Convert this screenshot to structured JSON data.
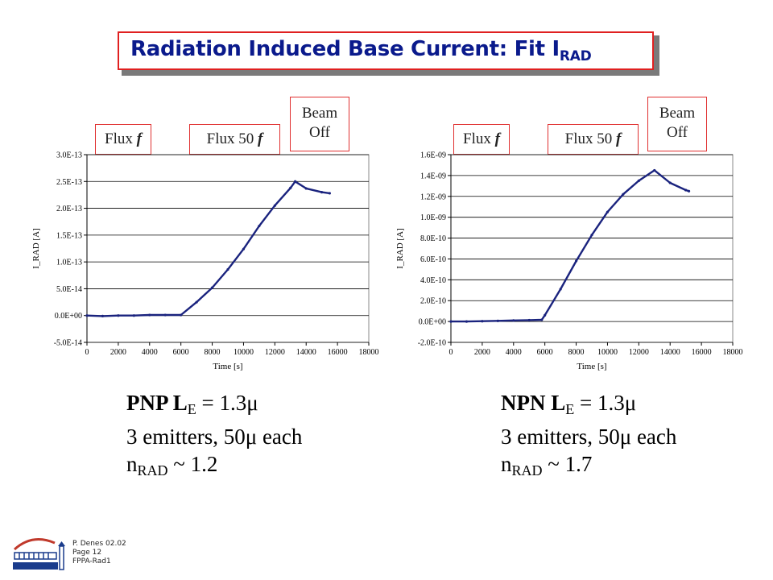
{
  "title": {
    "text": "Radiation Induced Base Current: Fit I",
    "sub": "RAD"
  },
  "left": {
    "flags": {
      "flux": "Flux",
      "flux_var": "f",
      "flux50": "Flux 50",
      "flux50_var": "f",
      "beam_line1": "Beam",
      "beam_line2": "Off"
    },
    "caption": {
      "line1_prefix": "PNP L",
      "line1_sub": "E",
      "line1_suffix": " = 1.3μ",
      "line2": "3 emitters, 50μ each",
      "line3_prefix": "n",
      "line3_sub": "RAD",
      "line3_suffix": " ~ 1.2"
    }
  },
  "right": {
    "flags": {
      "flux": "Flux",
      "flux_var": "f",
      "flux50": "Flux 50",
      "flux50_var": "f",
      "beam_line1": "Beam",
      "beam_line2": "Off"
    },
    "caption": {
      "line1_prefix": "NPN L",
      "line1_sub": "E",
      "line1_suffix": " = 1.3μ",
      "line2": "3 emitters, 50μ each",
      "line3_prefix": "n",
      "line3_sub": "RAD",
      "line3_suffix": " ~ 1.7"
    }
  },
  "footer": {
    "line1": "P. Denes 02.02",
    "line2": "Page 12",
    "line3": "FPPA-Rad1"
  },
  "colors": {
    "title": "#0a1a8c",
    "series": "#1a237e",
    "flag_border": "#e03030",
    "title_border": "#e02020"
  },
  "chart_data": [
    {
      "type": "line",
      "xlabel": "Time [s]",
      "ylabel": "I_RAD [A]",
      "xlim": [
        0,
        18000
      ],
      "ylim": [
        -5e-14,
        3e-13
      ],
      "xticks": [
        "0",
        "2000",
        "4000",
        "6000",
        "8000",
        "10000",
        "12000",
        "14000",
        "16000",
        "18000"
      ],
      "yticks": [
        "-5.0E-14",
        "0.0E+00",
        "5.0E-14",
        "1.0E-13",
        "1.5E-13",
        "2.0E-13",
        "2.5E-13",
        "3.0E-13"
      ],
      "grid": true,
      "series": [
        {
          "x": [
            0,
            1000,
            2000,
            3000,
            4000,
            5000,
            6000,
            7000,
            8000,
            9000,
            10000,
            11000,
            12000,
            13000,
            13300,
            14000,
            15000,
            15500
          ],
          "y": [
            0,
            -1e-15,
            0,
            0,
            1e-15,
            1e-15,
            1e-15,
            2.5e-14,
            5.2e-14,
            8.6e-14,
            1.24e-13,
            1.67e-13,
            2.05e-13,
            2.38e-13,
            2.5e-13,
            2.37e-13,
            2.3e-13,
            2.28e-13
          ]
        }
      ]
    },
    {
      "type": "line",
      "xlabel": "Time [s]",
      "ylabel": "I_RAD [A]",
      "xlim": [
        0,
        18000
      ],
      "ylim": [
        -2e-10,
        1.6e-09
      ],
      "xticks": [
        "0",
        "2000",
        "4000",
        "6000",
        "8000",
        "10000",
        "12000",
        "14000",
        "16000",
        "18000"
      ],
      "yticks": [
        "-2.0E-10",
        "0.0E+00",
        "2.0E-10",
        "4.0E-10",
        "6.0E-10",
        "8.0E-10",
        "1.0E-09",
        "1.2E-09",
        "1.4E-09",
        "1.6E-09"
      ],
      "grid": true,
      "series": [
        {
          "x": [
            0,
            1000,
            2000,
            3000,
            4000,
            5000,
            5800,
            6000,
            7000,
            8000,
            9000,
            10000,
            11000,
            12000,
            13000,
            14000,
            15000,
            15200
          ],
          "y": [
            0,
            0,
            3e-12,
            6e-12,
            1e-11,
            1.3e-11,
            1.6e-11,
            6e-11,
            3.1e-10,
            5.8e-10,
            8.3e-10,
            1.05e-09,
            1.22e-09,
            1.35e-09,
            1.45e-09,
            1.33e-09,
            1.26e-09,
            1.25e-09
          ]
        }
      ]
    }
  ]
}
